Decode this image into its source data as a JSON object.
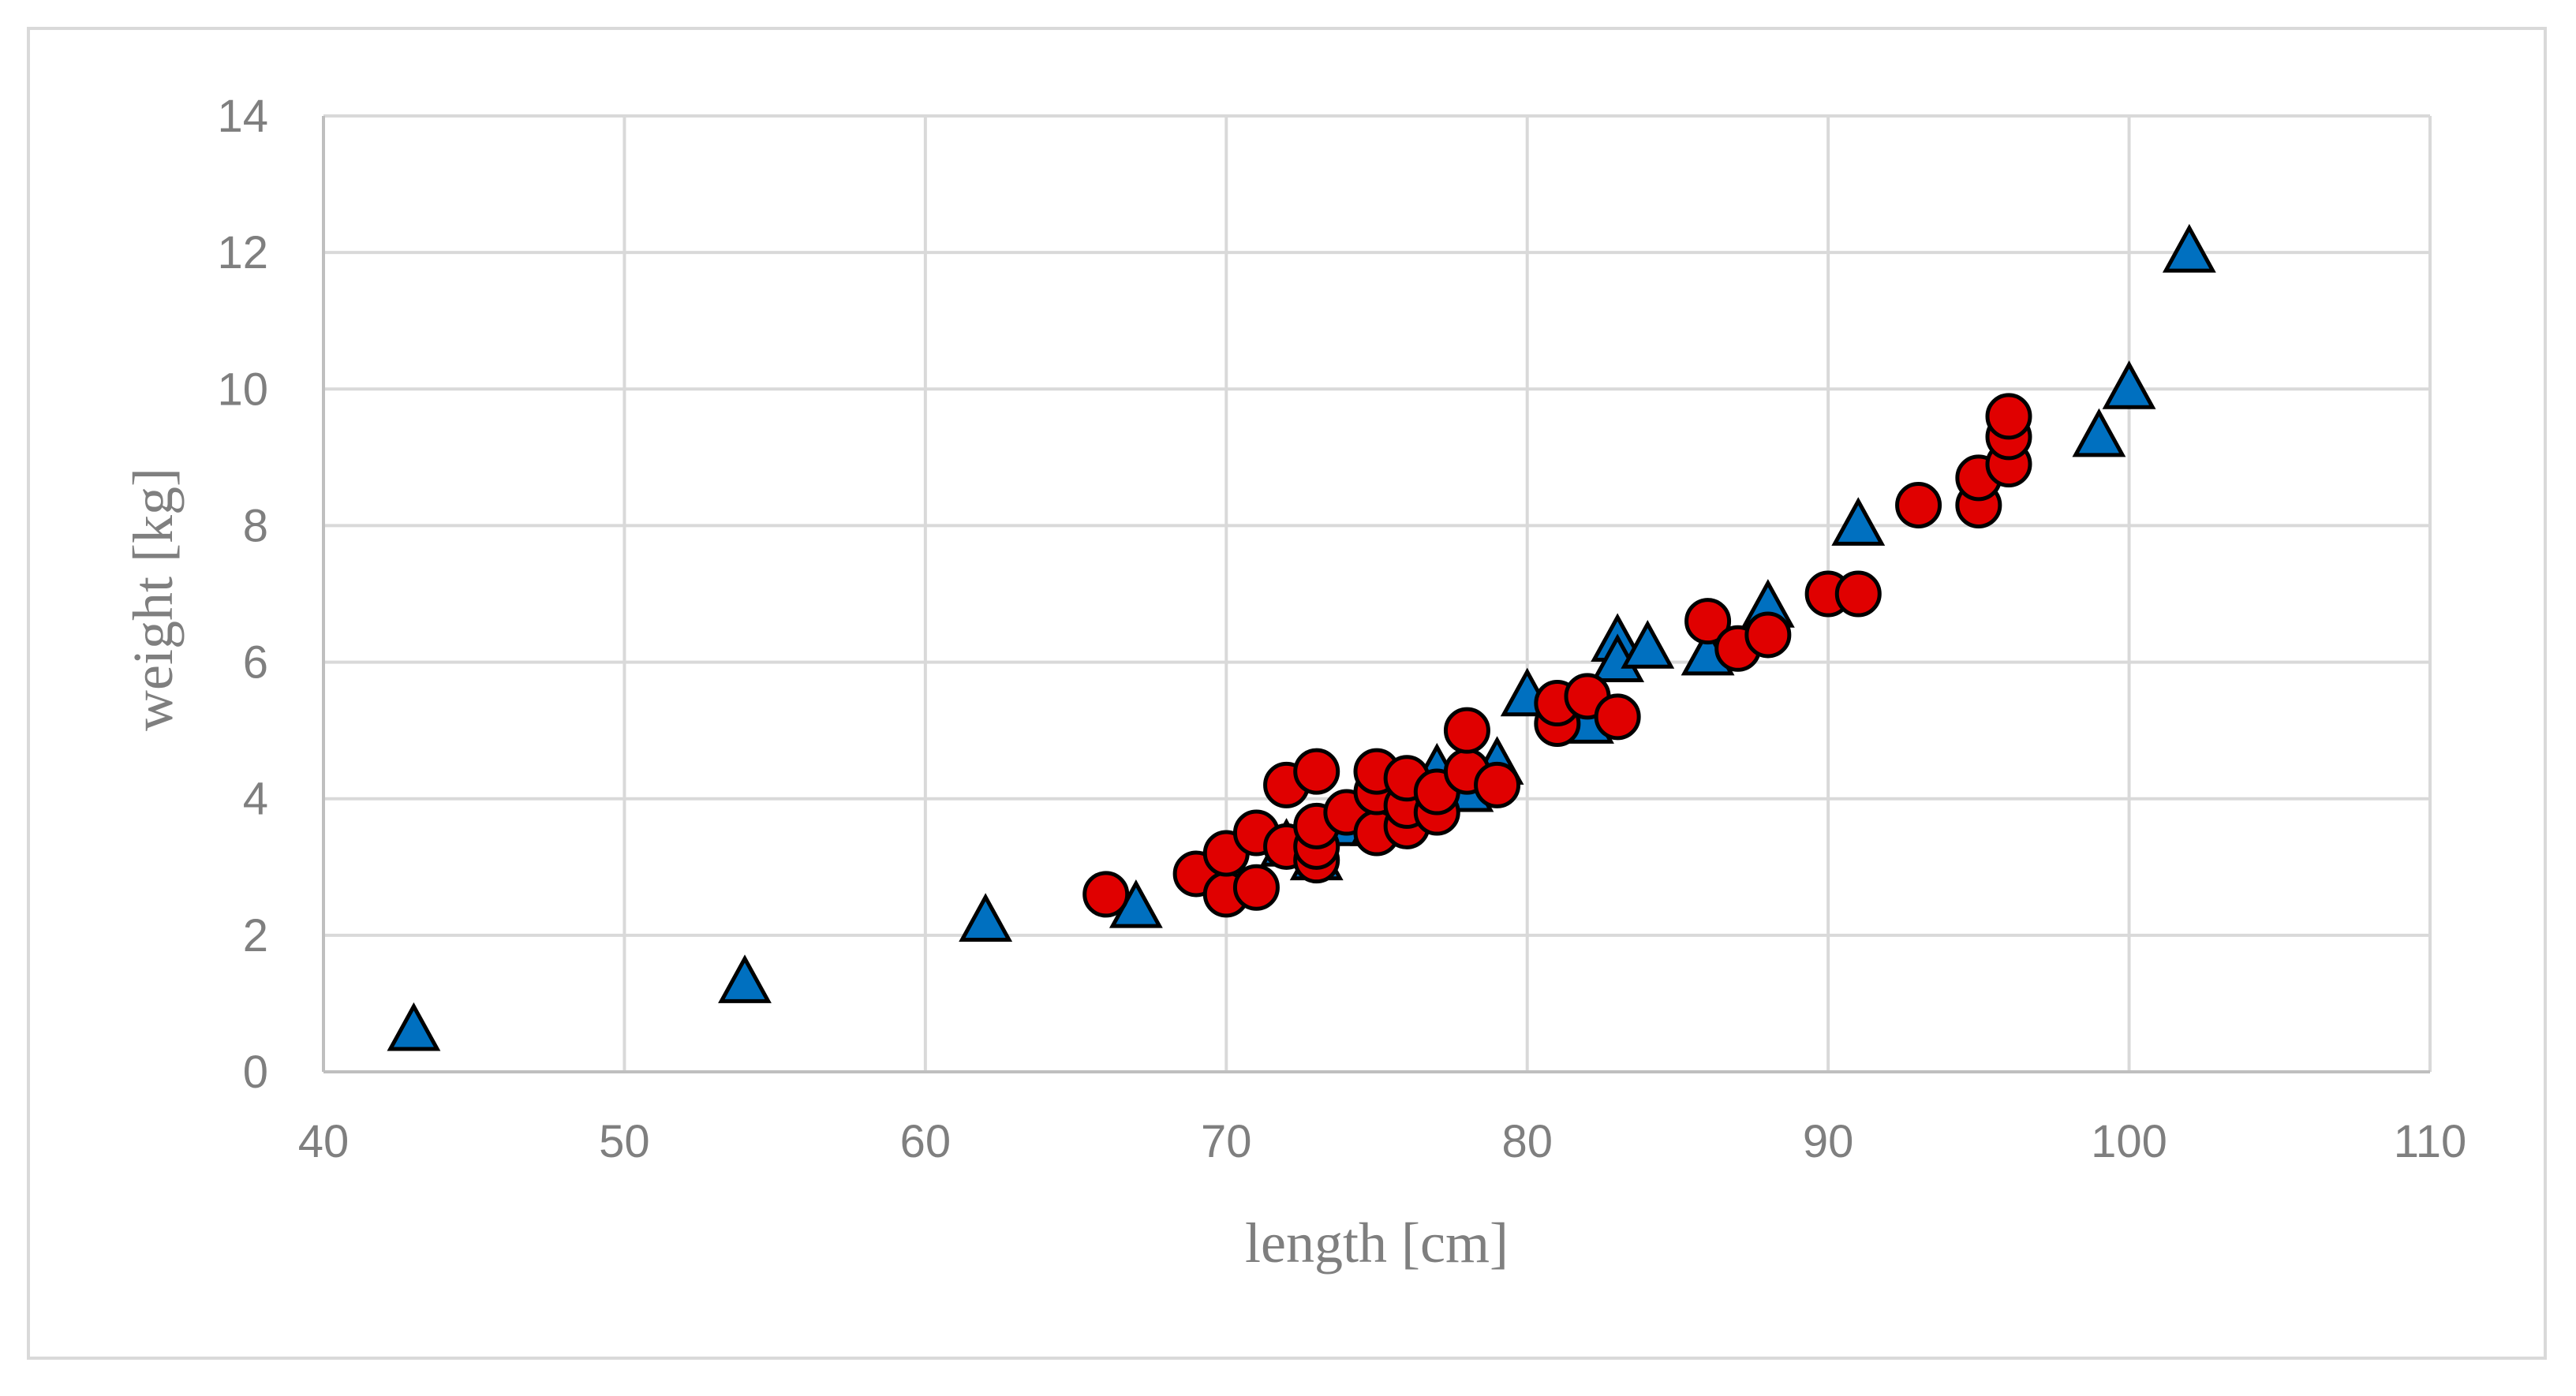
{
  "chart_data": {
    "type": "scatter",
    "title": "",
    "xlabel": "length [cm]",
    "ylabel": "weight [kg]",
    "xlim": [
      40,
      110
    ],
    "ylim": [
      0,
      14
    ],
    "xticks": [
      40,
      50,
      60,
      70,
      80,
      90,
      100,
      110
    ],
    "yticks": [
      0,
      2,
      4,
      6,
      8,
      10,
      12,
      14
    ],
    "grid": true,
    "legend": "none",
    "series": [
      {
        "marker": "triangle",
        "color": "#0070c0",
        "points": [
          [
            43,
            0.6
          ],
          [
            54,
            1.3
          ],
          [
            62,
            2.2
          ],
          [
            67,
            2.4
          ],
          [
            72,
            3.3
          ],
          [
            73,
            3.1
          ],
          [
            74,
            3.6
          ],
          [
            75,
            3.6
          ],
          [
            76,
            3.8
          ],
          [
            77,
            4.4
          ],
          [
            78,
            4.1
          ],
          [
            79,
            4.5
          ],
          [
            80,
            5.5
          ],
          [
            82,
            5.1
          ],
          [
            83,
            6.3
          ],
          [
            83,
            6.0
          ],
          [
            84,
            6.2
          ],
          [
            86,
            6.1
          ],
          [
            88,
            6.8
          ],
          [
            91,
            8.0
          ],
          [
            99,
            9.3
          ],
          [
            100,
            10.0
          ],
          [
            102,
            12.0
          ]
        ]
      },
      {
        "marker": "circle",
        "color": "#e00000",
        "points": [
          [
            66,
            2.6
          ],
          [
            69,
            2.9
          ],
          [
            70,
            2.6
          ],
          [
            70,
            3.2
          ],
          [
            71,
            2.7
          ],
          [
            71,
            3.5
          ],
          [
            72,
            3.3
          ],
          [
            72,
            4.2
          ],
          [
            73,
            3.1
          ],
          [
            73,
            3.3
          ],
          [
            73,
            3.6
          ],
          [
            73,
            4.4
          ],
          [
            74,
            3.8
          ],
          [
            75,
            3.5
          ],
          [
            75,
            4.1
          ],
          [
            75,
            4.4
          ],
          [
            76,
            3.6
          ],
          [
            76,
            3.9
          ],
          [
            76,
            4.3
          ],
          [
            77,
            3.8
          ],
          [
            77,
            4.1
          ],
          [
            78,
            4.4
          ],
          [
            78,
            5.0
          ],
          [
            79,
            4.2
          ],
          [
            81,
            5.1
          ],
          [
            81,
            5.4
          ],
          [
            82,
            5.5
          ],
          [
            83,
            5.2
          ],
          [
            86,
            6.6
          ],
          [
            87,
            6.2
          ],
          [
            88,
            6.4
          ],
          [
            90,
            7.0
          ],
          [
            91,
            7.0
          ],
          [
            93,
            8.3
          ],
          [
            95,
            8.3
          ],
          [
            95,
            8.7
          ],
          [
            96,
            8.9
          ],
          [
            96,
            9.3
          ],
          [
            96,
            9.6
          ]
        ]
      }
    ]
  }
}
